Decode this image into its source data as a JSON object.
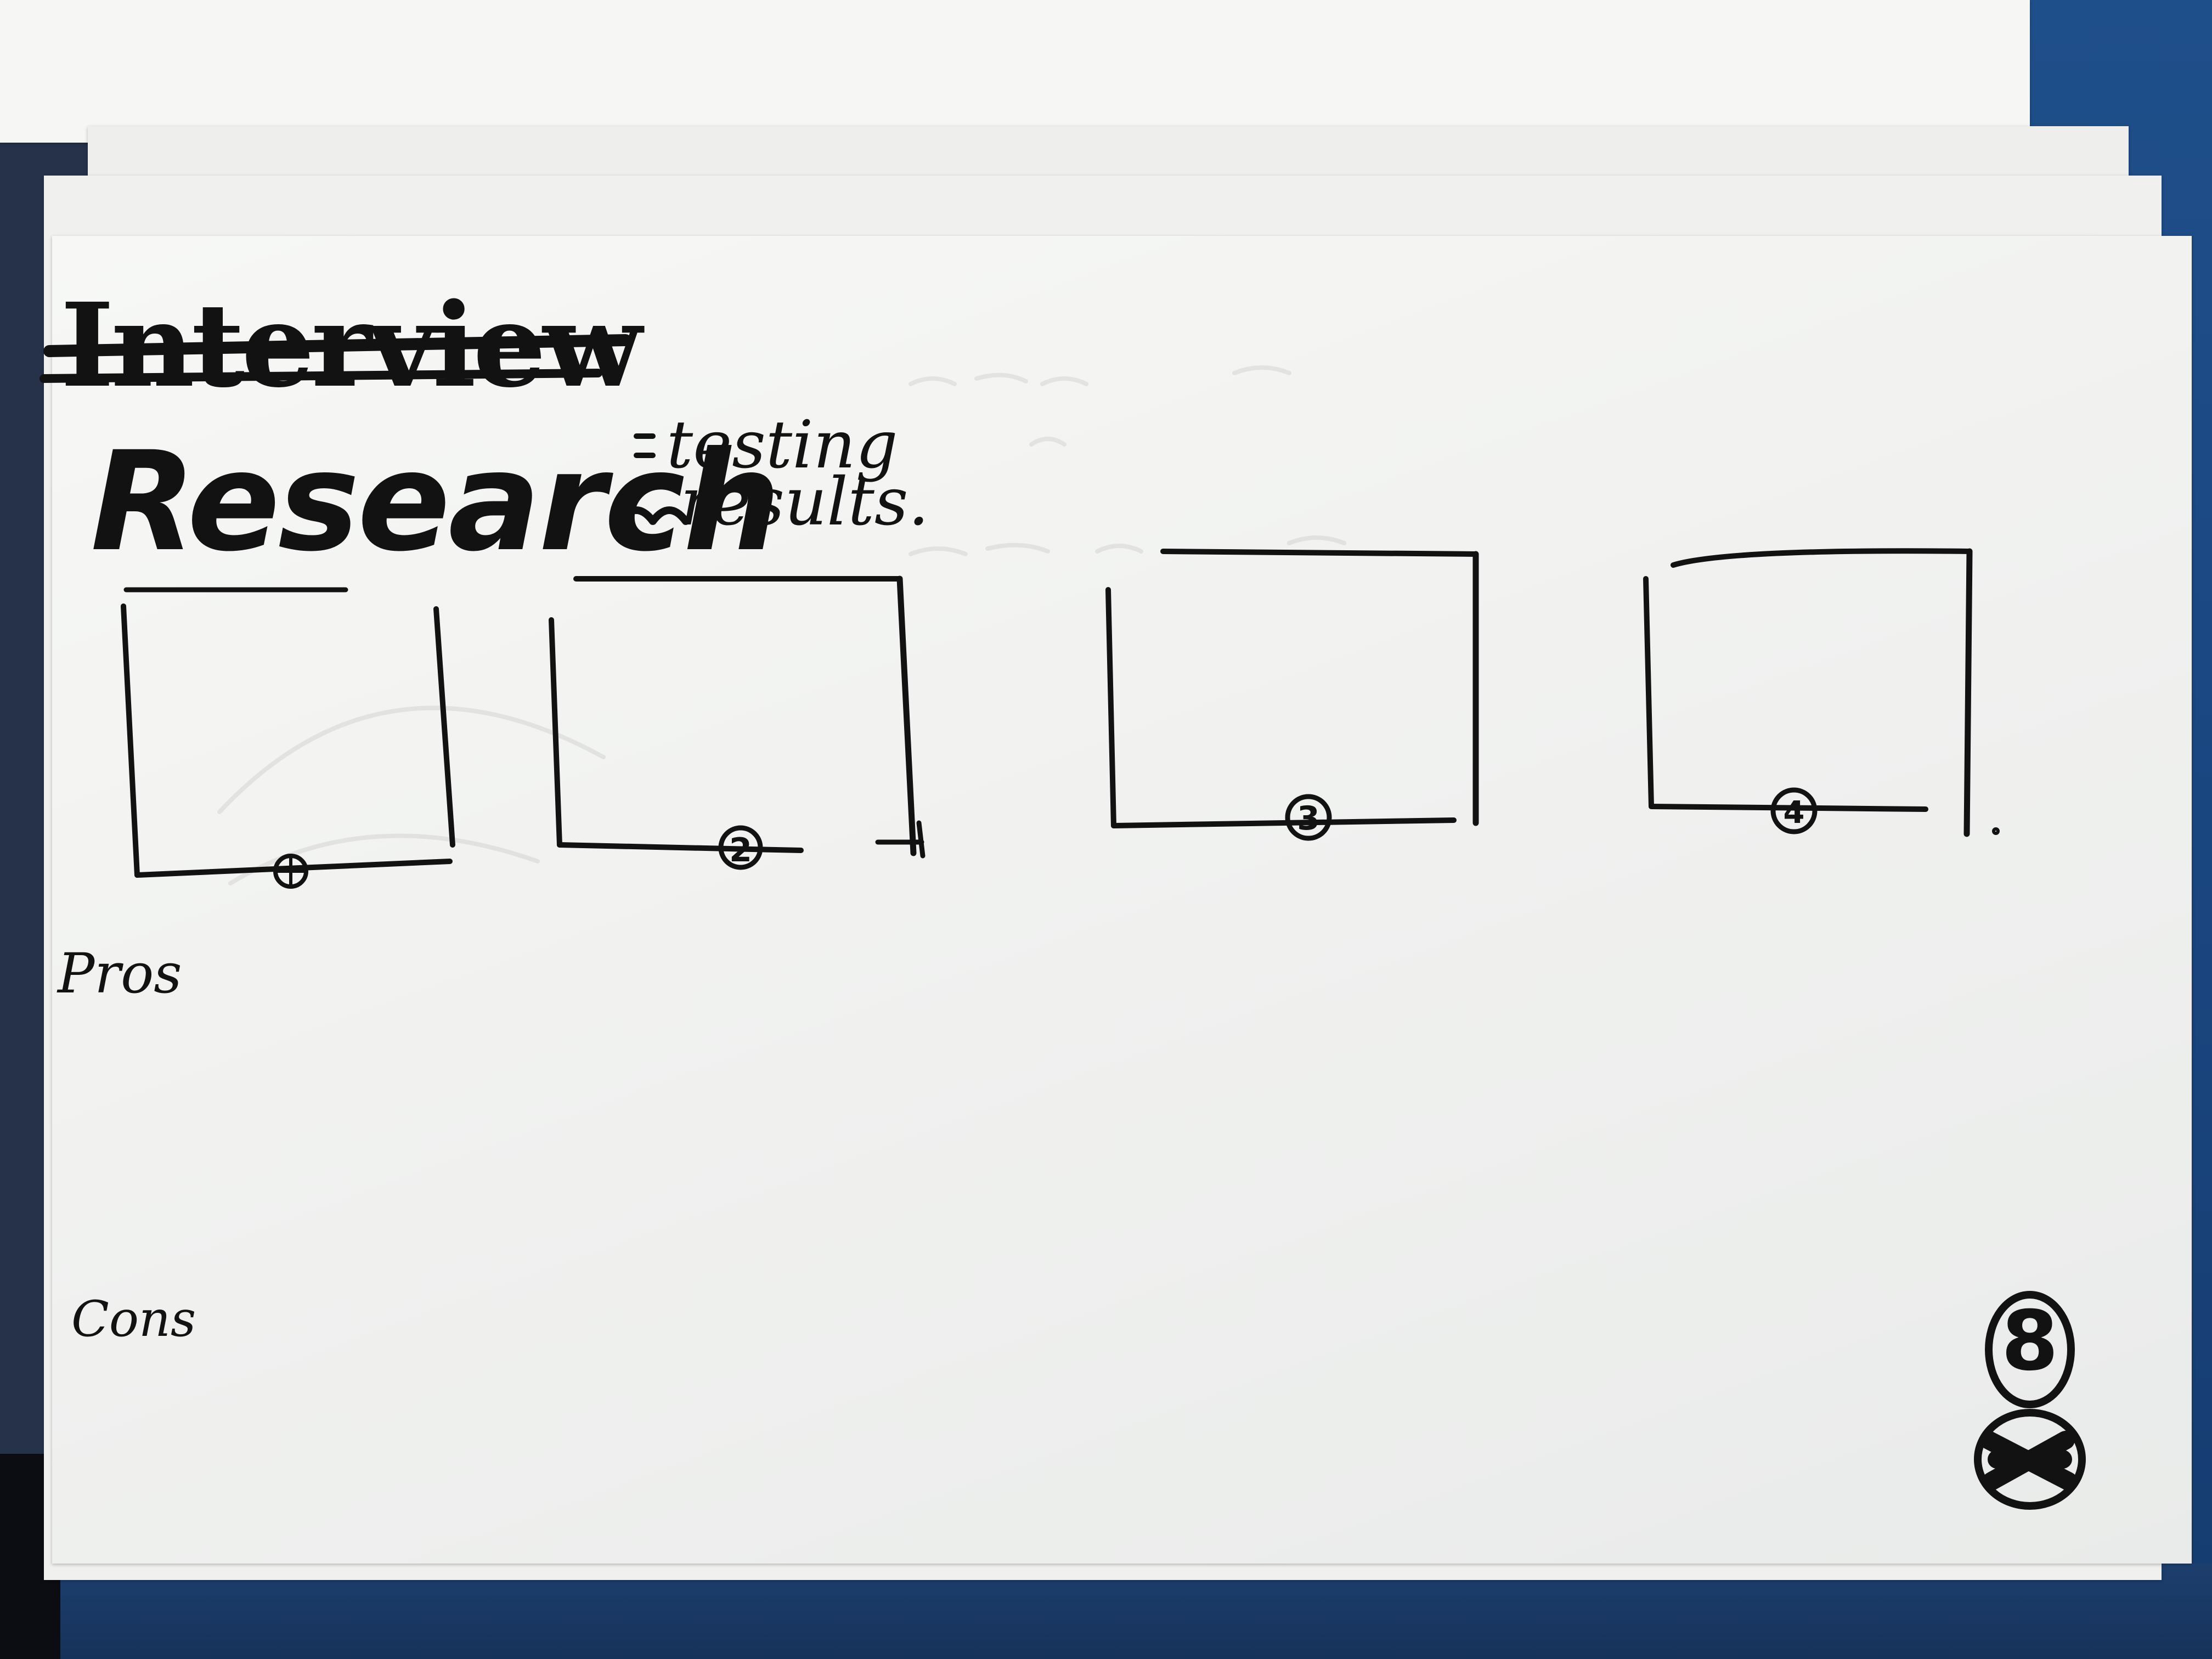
{
  "sketch": {
    "struck_title": "Interview",
    "title": "Research",
    "subtitle_line1": "testing",
    "subtitle_line2": "results.",
    "frames": [
      {
        "number": "1"
      },
      {
        "number": "2"
      },
      {
        "number": "3"
      },
      {
        "number": "4"
      }
    ],
    "pros_label": "Pros",
    "cons_label": "Cons",
    "page_number": "8"
  },
  "colors": {
    "ink": "#121212",
    "paper": "#f3f4f2",
    "desk_blue": "#1f4f8a"
  }
}
